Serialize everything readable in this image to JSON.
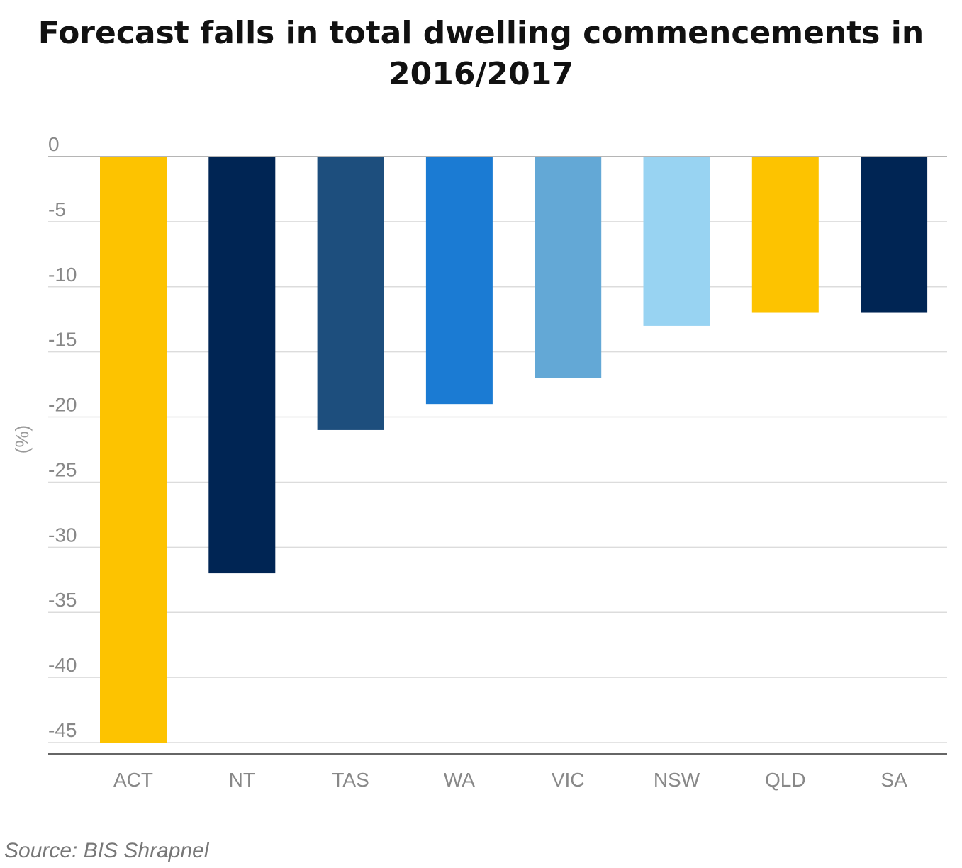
{
  "chart_data": {
    "type": "bar",
    "title_lines": [
      "Forecast falls in total dwelling commencements in",
      "2016/2017"
    ],
    "ylabel": "(%)",
    "xlabel": "",
    "categories": [
      "ACT",
      "NT",
      "TAS",
      "WA",
      "VIC",
      "NSW",
      "QLD",
      "SA"
    ],
    "values": [
      -45,
      -32,
      -21,
      -19,
      -17,
      -13,
      -12,
      -12
    ],
    "bar_colors": [
      "#FDC300",
      "#002554",
      "#1D4E7D",
      "#1B7BD3",
      "#63A8D6",
      "#98D3F2",
      "#FDC300",
      "#002554"
    ],
    "ylim": [
      -45,
      0
    ],
    "yticks": [
      0,
      -5,
      -10,
      -15,
      -20,
      -25,
      -30,
      -35,
      -40,
      -45
    ],
    "ytick_labels": [
      "0",
      "-5",
      "-10",
      "-15",
      "-20",
      "-25",
      "-30",
      "-35",
      "-40",
      "-45"
    ],
    "grid": true,
    "legend": "none"
  },
  "source": "Source: BIS Shrapnel"
}
